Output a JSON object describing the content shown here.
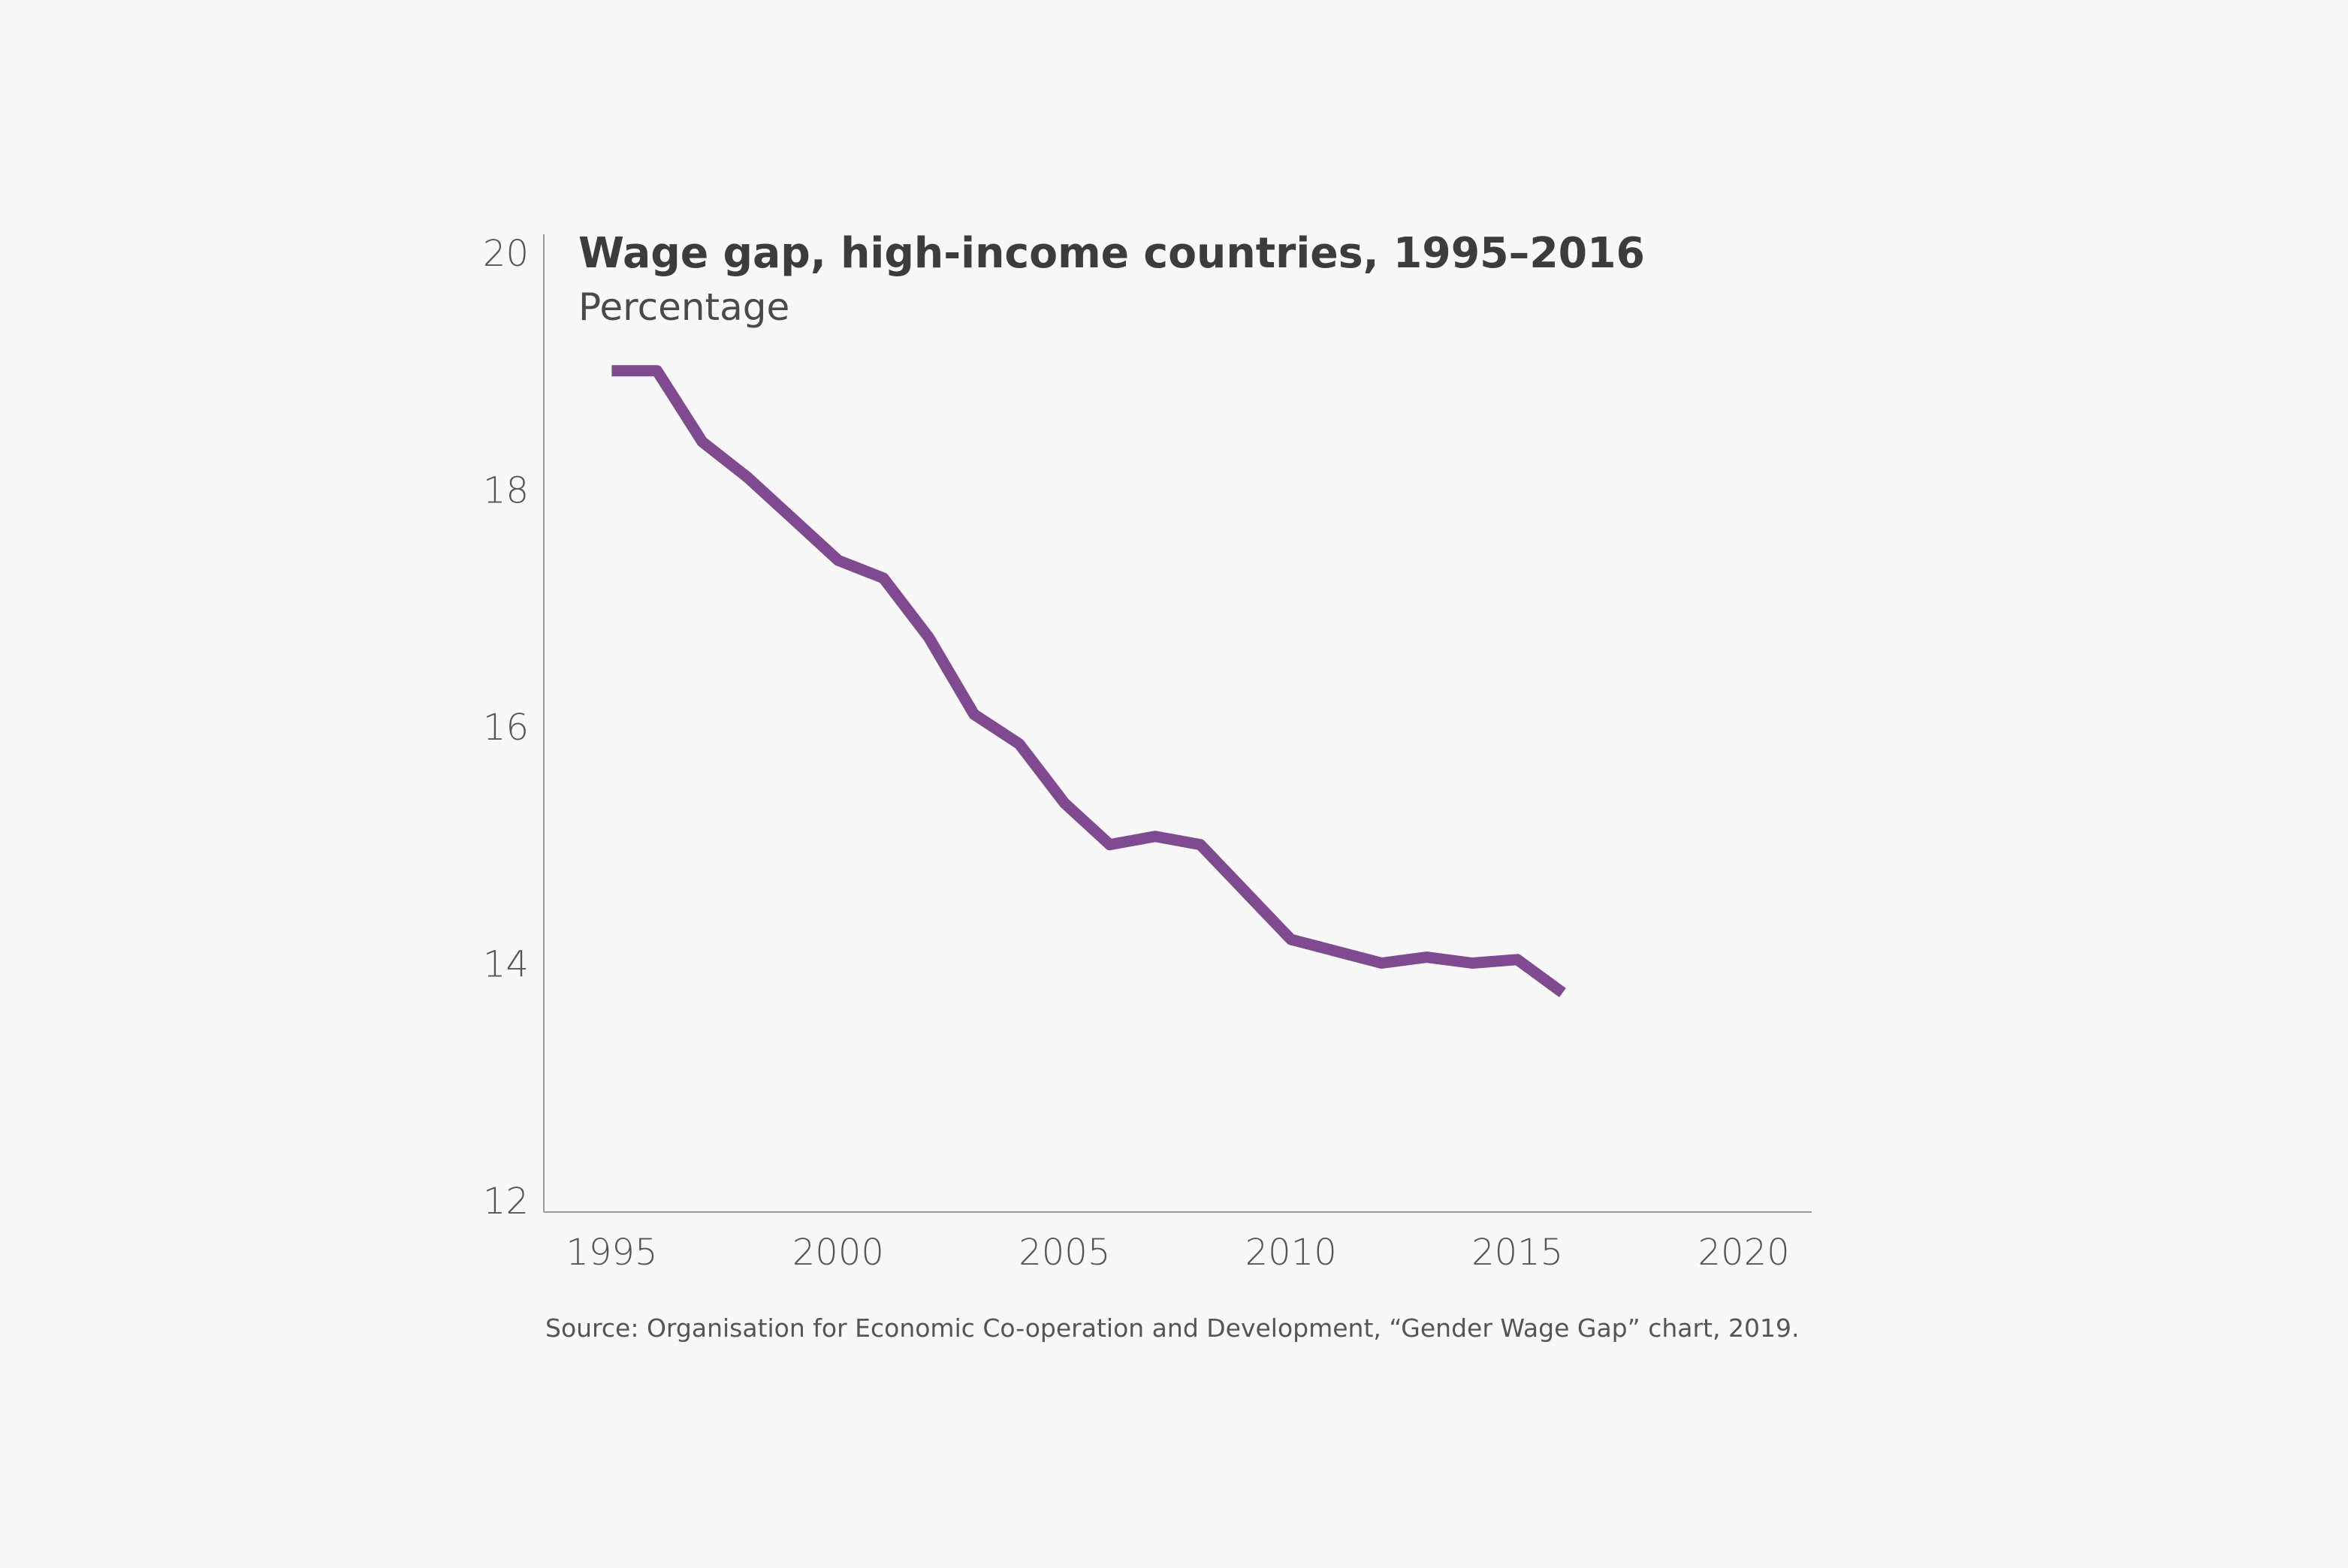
{
  "chart_data": {
    "type": "line",
    "title": "Wage gap, high-income countries, 1995–2016",
    "subtitle": "Percentage",
    "source": "Source: Organisation for Economic Co-operation and Development, “Gender Wage Gap” chart, 2019.",
    "xlabel": "",
    "ylabel": "",
    "xlim": [
      1993.5,
      2021.5
    ],
    "ylim": [
      12,
      20
    ],
    "x_ticks": [
      1995,
      2000,
      2005,
      2010,
      2015,
      2020
    ],
    "y_ticks": [
      12,
      14,
      16,
      18,
      20
    ],
    "grid": false,
    "legend": "none",
    "series": [
      {
        "color": "#7f4a8f",
        "x": [
          1995,
          1996,
          1997,
          1998,
          1999,
          2000,
          2001,
          2002,
          2003,
          2004,
          2005,
          2006,
          2007,
          2008,
          2009,
          2010,
          2011,
          2012,
          2013,
          2014,
          2015,
          2016
        ],
        "y": [
          19.0,
          19.0,
          18.4,
          18.1,
          17.75,
          17.4,
          17.25,
          16.75,
          16.1,
          15.85,
          15.35,
          15.0,
          15.07,
          15.0,
          14.6,
          14.2,
          14.1,
          14.0,
          14.05,
          14.0,
          14.03,
          13.75
        ]
      }
    ]
  }
}
